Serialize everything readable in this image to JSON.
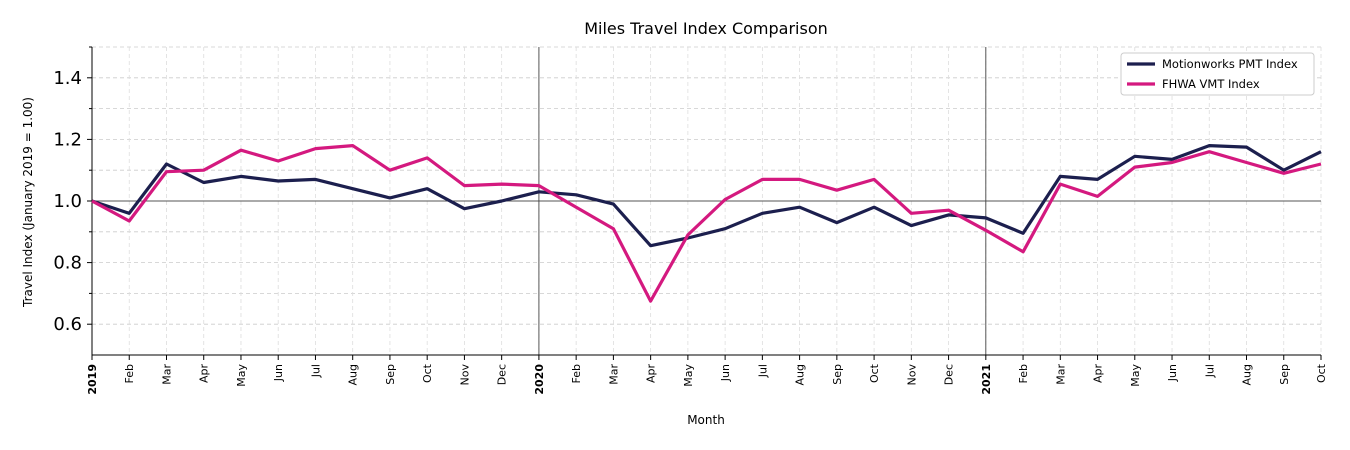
{
  "chart_data": {
    "type": "line",
    "title": "Miles Travel Index Comparison",
    "xlabel": "Month",
    "ylabel": "Travel Index (January 2019 = 1.00)",
    "ylim": [
      0.5,
      1.5
    ],
    "yticks": [
      0.6,
      0.8,
      1.0,
      1.2,
      1.4
    ],
    "yticks_labels": [
      "0.6",
      "0.8",
      "1.0",
      "1.2",
      "1.4"
    ],
    "grid": true,
    "legend_position": "top-right",
    "categories": [
      "2019",
      "Feb",
      "Mar",
      "Apr",
      "May",
      "Jun",
      "Jul",
      "Aug",
      "Sep",
      "Oct",
      "Nov",
      "Dec",
      "2020",
      "Feb",
      "Mar",
      "Apr",
      "May",
      "Jun",
      "Jul",
      "Aug",
      "Sep",
      "Oct",
      "Nov",
      "Dec",
      "2021",
      "Feb",
      "Mar",
      "Apr",
      "May",
      "Jun",
      "Jul",
      "Aug",
      "Sep",
      "Oct"
    ],
    "series": [
      {
        "name": "Motionworks PMT Index",
        "color": "#1c1f4e",
        "values": [
          1.0,
          0.96,
          1.12,
          1.06,
          1.08,
          1.065,
          1.07,
          1.04,
          1.01,
          1.04,
          0.975,
          1.0,
          1.03,
          1.02,
          0.99,
          0.855,
          0.88,
          0.91,
          0.96,
          0.98,
          0.93,
          0.98,
          0.92,
          0.955,
          0.945,
          0.895,
          1.08,
          1.07,
          1.145,
          1.135,
          1.18,
          1.175,
          1.1,
          1.16
        ]
      },
      {
        "name": "FHWA VMT Index",
        "color": "#d4197f",
        "values": [
          1.0,
          0.935,
          1.095,
          1.1,
          1.165,
          1.13,
          1.17,
          1.18,
          1.1,
          1.14,
          1.05,
          1.055,
          1.05,
          0.98,
          0.91,
          0.675,
          0.89,
          1.005,
          1.07,
          1.07,
          1.035,
          1.07,
          0.96,
          0.97,
          0.905,
          0.835,
          1.055,
          1.015,
          1.11,
          1.125,
          1.16,
          1.125,
          1.09,
          1.12
        ]
      }
    ]
  }
}
